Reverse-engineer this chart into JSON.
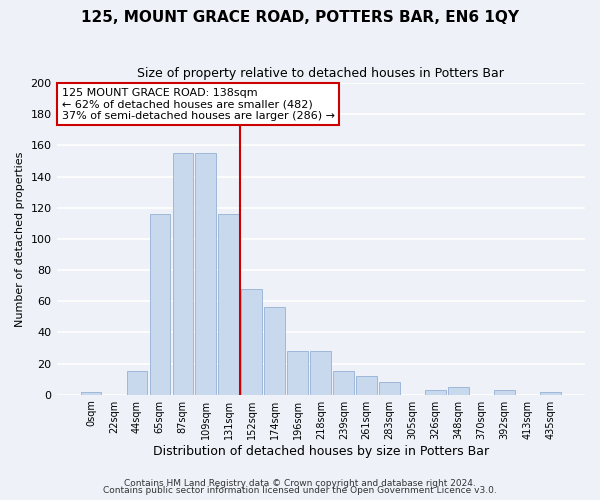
{
  "title": "125, MOUNT GRACE ROAD, POTTERS BAR, EN6 1QY",
  "subtitle": "Size of property relative to detached houses in Potters Bar",
  "xlabel": "Distribution of detached houses by size in Potters Bar",
  "ylabel": "Number of detached properties",
  "bar_color": "#c8d9ee",
  "bar_edge_color": "#a0b8d8",
  "background_color": "#eef2f8",
  "grid_color": "#ffffff",
  "bin_labels": [
    "0sqm",
    "22sqm",
    "44sqm",
    "65sqm",
    "87sqm",
    "109sqm",
    "131sqm",
    "152sqm",
    "174sqm",
    "196sqm",
    "218sqm",
    "239sqm",
    "261sqm",
    "283sqm",
    "305sqm",
    "326sqm",
    "348sqm",
    "370sqm",
    "392sqm",
    "413sqm",
    "435sqm"
  ],
  "bar_heights": [
    2,
    0,
    15,
    116,
    155,
    155,
    116,
    68,
    56,
    28,
    28,
    15,
    12,
    8,
    0,
    3,
    5,
    0,
    3,
    0,
    2
  ],
  "ylim": [
    0,
    200
  ],
  "yticks": [
    0,
    20,
    40,
    60,
    80,
    100,
    120,
    140,
    160,
    180,
    200
  ],
  "marker_label": "125 MOUNT GRACE ROAD: 138sqm",
  "annotation_line1": "← 62% of detached houses are smaller (482)",
  "annotation_line2": "37% of semi-detached houses are larger (286) →",
  "annotation_box_color": "#ffffff",
  "annotation_box_edge": "#cc0000",
  "marker_line_color": "#cc0000",
  "footer1": "Contains HM Land Registry data © Crown copyright and database right 2024.",
  "footer2": "Contains public sector information licensed under the Open Government Licence v3.0."
}
